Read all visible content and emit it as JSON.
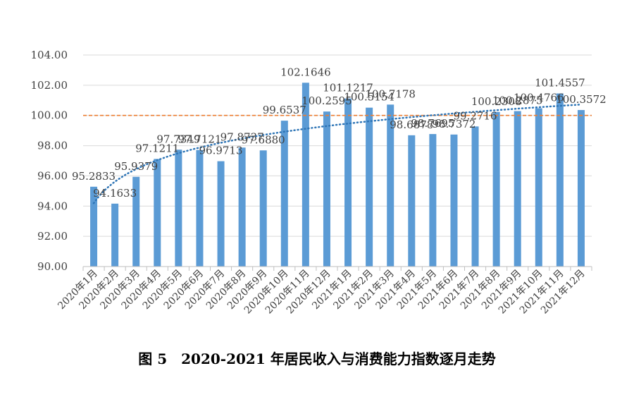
{
  "caption": "图 5　2020-2021 年居民收入与消费能力指数逐月走势",
  "chart_data": {
    "type": "bar",
    "categories": [
      "2020年1月",
      "2020年2月",
      "2020年3月",
      "2020年4月",
      "2020年5月",
      "2020年6月",
      "2020年7月",
      "2020年8月",
      "2020年9月",
      "2020年10月",
      "2020年11月",
      "2020年12月",
      "2021年1月",
      "2021年2月",
      "2021年3月",
      "2021年4月",
      "2021年5月",
      "2021年6月",
      "2021年7月",
      "2021年8月",
      "2021年9月",
      "2021年10月",
      "2021年11月",
      "2021年12月"
    ],
    "values": [
      95.2833,
      94.1633,
      95.9379,
      97.1211,
      97.7349,
      97.7121,
      96.9713,
      97.8737,
      97.688,
      99.6537,
      102.1646,
      100.2595,
      101.1217,
      100.5154,
      100.7178,
      98.6878,
      98.7695,
      98.7372,
      99.2716,
      100.2308,
      100.2875,
      100.4766,
      101.4557,
      100.3572
    ],
    "value_labels": [
      "95.2833",
      "94.1633",
      "95.9379",
      "97.1211",
      "97.7349",
      "97.7121",
      "96.9713",
      "97.8737",
      "97.6880",
      "99.6537",
      "102.1646",
      "100.2595",
      "101.1217",
      "100.5154",
      "100.7178",
      "98.6878",
      "98.7695",
      "98.7372",
      "99.2716",
      "100.2308",
      "100.2875",
      "100.4766",
      "101.4557",
      "100.3572"
    ],
    "ylim": [
      90,
      104
    ],
    "yticks": [
      "90.00",
      "92.00",
      "94.00",
      "96.00",
      "98.00",
      "100.00",
      "102.00",
      "104.00"
    ],
    "reference_line": 100,
    "trendline": "logarithmic",
    "grid": true,
    "colors": {
      "bar": "#5b9bd5",
      "trend": "#2e75b6",
      "reference": "#ed7d31",
      "grid": "#d9d9d9",
      "axis": "#bfbfbf"
    }
  }
}
